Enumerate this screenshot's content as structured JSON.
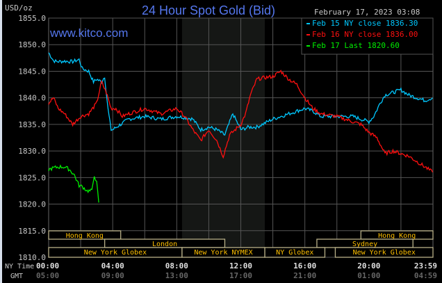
{
  "chart_data": {
    "type": "line",
    "title": "24 Hour Spot Gold (Bid)",
    "ylabel": "USD/oz",
    "timestamp": "February 17, 2023 03:08",
    "watermark": "www.kitco.com",
    "ylim": [
      1810,
      1855
    ],
    "yticks": [
      "1855.0",
      "1850.0",
      "1845.0",
      "1840.0",
      "1835.0",
      "1830.0",
      "1825.0",
      "1820.0",
      "1815.0",
      "1810.0"
    ],
    "xlim_hours": [
      0,
      24
    ],
    "x_row_labels": {
      "ny": "NY Time",
      "gmt": "GMT"
    },
    "xticks_ny": [
      "00:00",
      "04:00",
      "08:00",
      "12:00",
      "16:00",
      "20:00",
      "23:59"
    ],
    "xticks_gmt": [
      "05:00",
      "09:00",
      "13:00",
      "17:00",
      "21:00",
      "01:00",
      "04:59"
    ],
    "grid": true,
    "legend_position": "top-right",
    "series": [
      {
        "name": "Feb 15 NY close 1836.30",
        "color": "#00c8ff",
        "x": [
          0,
          0.3,
          0.5,
          1,
          1.5,
          1.9,
          2.1,
          2.5,
          2.8,
          3,
          3.3,
          3.5,
          3.7,
          3.9,
          4,
          4.5,
          5,
          6,
          7,
          8,
          8.5,
          9,
          9.5,
          10,
          10.5,
          11,
          11.5,
          12,
          12.5,
          13,
          14,
          15,
          16,
          16.5,
          17,
          18,
          19,
          19.5,
          20,
          20.3,
          20.7,
          21,
          21.5,
          22,
          22.5,
          23,
          23.5,
          23.98
        ],
        "y": [
          1848.5,
          1847,
          1846.8,
          1846.9,
          1846.8,
          1847.2,
          1845.5,
          1845,
          1843,
          1843.5,
          1843,
          1844,
          1838,
          1834,
          1834,
          1835,
          1836,
          1836.5,
          1836,
          1836.5,
          1836.3,
          1836,
          1834,
          1834.5,
          1834,
          1833,
          1837,
          1834,
          1834.5,
          1834.5,
          1836,
          1837,
          1838,
          1837.5,
          1836.5,
          1836.5,
          1836.5,
          1836,
          1835.5,
          1836.5,
          1839,
          1840.5,
          1841,
          1841.5,
          1840.5,
          1840,
          1839.5,
          1840
        ]
      },
      {
        "name": "Feb 16 NY close 1836.00",
        "color": "#ff1010",
        "x": [
          0,
          0.3,
          0.6,
          1,
          1.5,
          2,
          2.5,
          3,
          3.3,
          3.6,
          3.9,
          4.2,
          4.6,
          5,
          6,
          7,
          8,
          8.5,
          9,
          9.5,
          10,
          10.5,
          10.9,
          11.3,
          12,
          12.3,
          12.6,
          13,
          13.5,
          14,
          14.5,
          15,
          15.5,
          16,
          16.5,
          17,
          18,
          19,
          19.5,
          20,
          20.5,
          21,
          21.5,
          22,
          22.5,
          23,
          23.5,
          23.98
        ],
        "y": [
          1839,
          1840,
          1838,
          1837,
          1835,
          1836.5,
          1837,
          1839,
          1843,
          1841,
          1838,
          1838,
          1836.5,
          1837,
          1838,
          1837,
          1838,
          1836.5,
          1834,
          1832,
          1834,
          1832,
          1829,
          1833,
          1835,
          1837,
          1840.5,
          1843.5,
          1843.8,
          1844,
          1845,
          1843.5,
          1842.5,
          1840,
          1838,
          1837,
          1836.5,
          1835.5,
          1835,
          1833.5,
          1832.5,
          1829.5,
          1830,
          1829.5,
          1829,
          1828,
          1827,
          1826
        ]
      },
      {
        "name": "Feb 17 Last 1820.60",
        "color": "#00ee00",
        "x": [
          0,
          0.3,
          0.6,
          1,
          1.3,
          1.6,
          1.9,
          2.1,
          2.4,
          2.7,
          2.85,
          3,
          3.13
        ],
        "y": [
          1826.5,
          1826.8,
          1827,
          1827,
          1826.5,
          1825.5,
          1823.5,
          1823.3,
          1822.5,
          1822.5,
          1825.5,
          1824,
          1820.3
        ]
      }
    ],
    "shaded_region_hours": [
      8.33,
      13.5
    ],
    "sessions": [
      {
        "label": "Hong Kong",
        "row": 1,
        "start": 0,
        "end": 4.5
      },
      {
        "label": "Hong Kong",
        "row": 1,
        "start": 19.5,
        "end": 24
      },
      {
        "label": "London",
        "row": 2,
        "start": 3.5,
        "end": 11
      },
      {
        "label": "Sydney",
        "row": 2,
        "start": 16.75,
        "end": 22.75
      },
      {
        "label": "New York Globex",
        "row": 3,
        "start": 0,
        "end": 8.33
      },
      {
        "label": "New York NYMEX",
        "row": 3,
        "start": 8.33,
        "end": 13.5
      },
      {
        "label": "NY Globex",
        "row": 3,
        "start": 13.5,
        "end": 17.25
      },
      {
        "label": "New York Globex",
        "row": 3,
        "start": 17.9,
        "end": 24
      }
    ]
  }
}
